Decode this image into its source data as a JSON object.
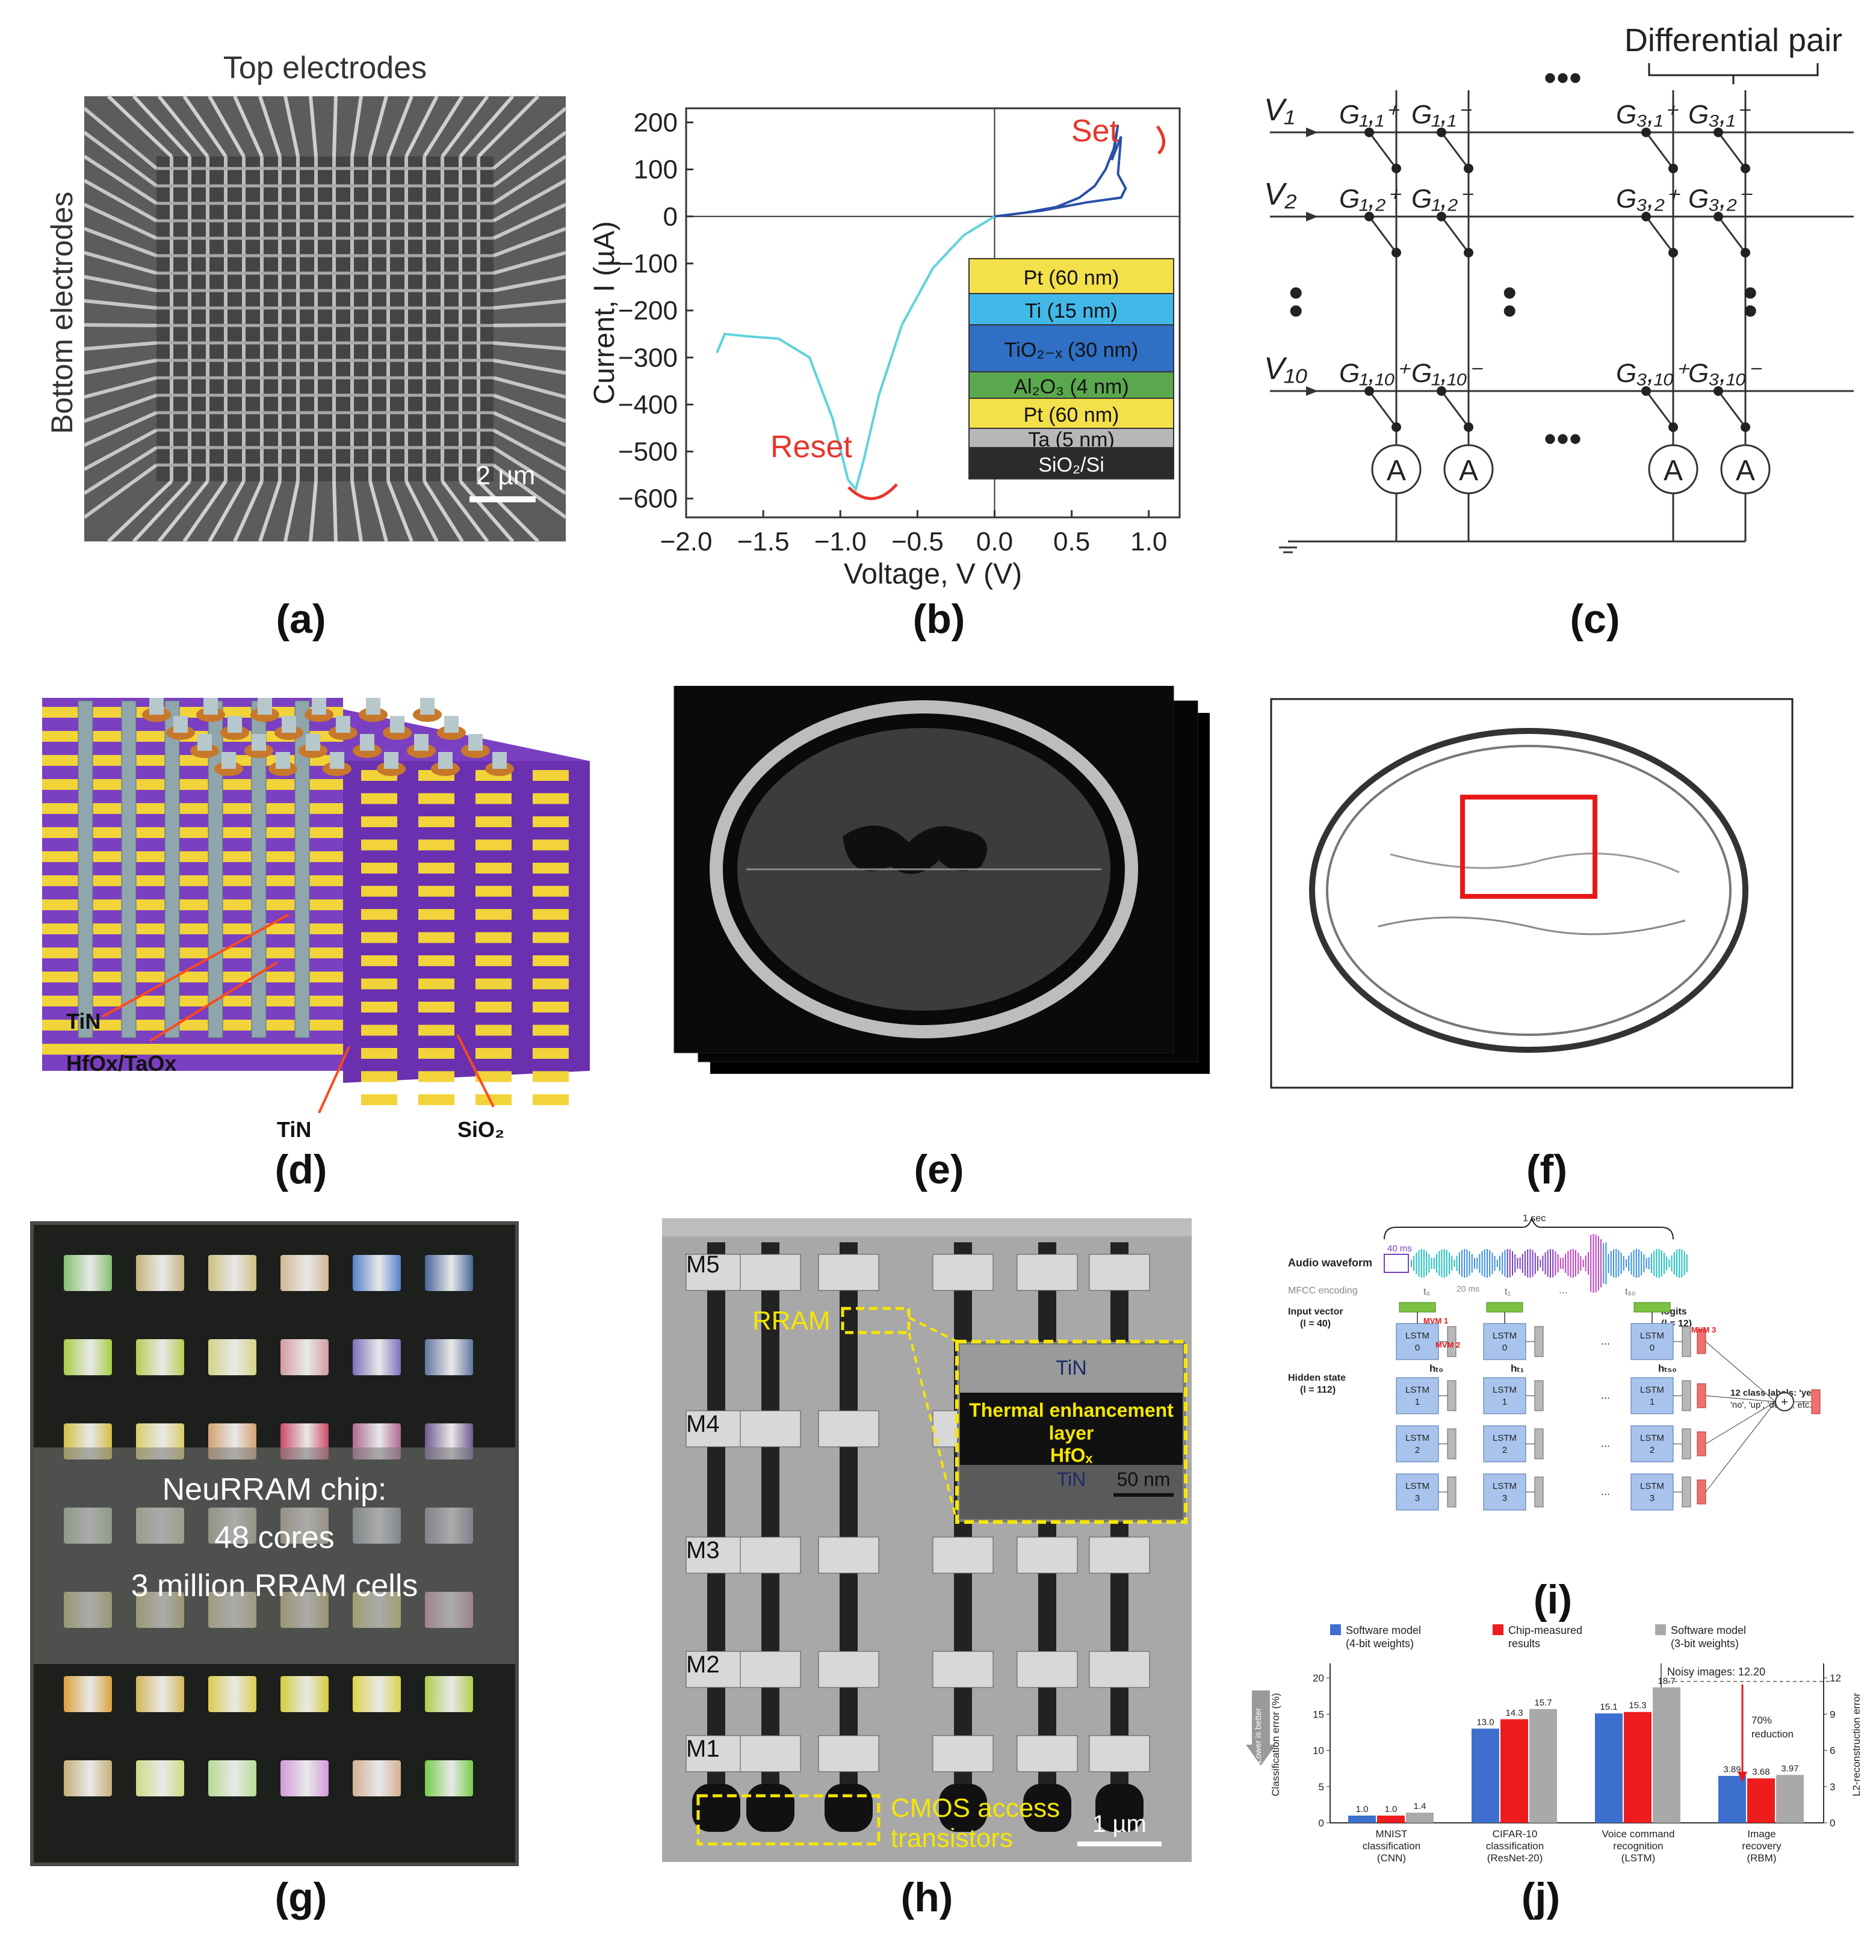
{
  "captions": [
    "(a)",
    "(b)",
    "(c)",
    "(d)",
    "(e)",
    "(f)",
    "(g)",
    "(h)",
    "(i)",
    "(j)"
  ],
  "panel_a": {
    "top_label": "Top electrodes",
    "side_label": "Bottom electrodes",
    "scale": "2 µm"
  },
  "panel_b": {
    "set_label": "Set",
    "reset_label": "Reset",
    "stack": [
      "Pt (60 nm)",
      "Ti (15 nm)",
      "TiO₂₋ₓ (30 nm)",
      "Al₂O₃ (4 nm)",
      "Pt (60 nm)",
      "Ta (5 nm)",
      "SiO₂/Si"
    ],
    "stack_colors": [
      "#f3e04a",
      "#41b8e8",
      "#2f6fc4",
      "#5aa84e",
      "#f3e04a",
      "#b7b7b7",
      "#2b2b2b"
    ],
    "chart_data": {
      "type": "line",
      "xlabel": "Voltage, V (V)",
      "ylabel": "Current, I (µA)",
      "xlim": [
        -2.0,
        1.2
      ],
      "ylim": [
        -640,
        230
      ],
      "xticks": [
        -2.0,
        -1.5,
        -1.0,
        -0.5,
        0.0,
        0.5,
        1.0
      ],
      "xtick_labels": [
        "−2.0",
        "−1.5",
        "−1.0",
        "−0.5",
        "0.0",
        "0.5",
        "1.0"
      ],
      "yticks": [
        200,
        100,
        0,
        -100,
        -200,
        -300,
        -400,
        -500,
        -600
      ],
      "ytick_labels": [
        "200",
        "100",
        "0",
        "−100",
        "−200",
        "−300",
        "−400",
        "−500",
        "−600"
      ],
      "series": [
        {
          "name": "Set",
          "color": "#2a4fa8",
          "x": [
            0.0,
            0.2,
            0.4,
            0.55,
            0.65,
            0.72,
            0.78,
            0.8,
            0.76,
            0.82,
            0.8,
            0.85,
            0.82,
            0.6,
            0.3,
            0.0
          ],
          "y": [
            0,
            8,
            20,
            40,
            65,
            100,
            150,
            195,
            120,
            170,
            90,
            60,
            40,
            30,
            12,
            0
          ]
        },
        {
          "name": "Reset",
          "color": "#5fd2dc",
          "x": [
            0.0,
            -0.2,
            -0.4,
            -0.6,
            -0.75,
            -0.85,
            -0.9,
            -0.95,
            -1.05,
            -1.2,
            -1.4,
            -1.6,
            -1.75,
            -1.8
          ],
          "y": [
            0,
            -40,
            -110,
            -230,
            -380,
            -520,
            -580,
            -560,
            -430,
            -300,
            -260,
            -255,
            -250,
            -290
          ]
        }
      ]
    }
  },
  "panel_c": {
    "title": "Differential pair",
    "rows": [
      "V₁",
      "V₂",
      "V₁₀"
    ],
    "ghead_pos": [
      "G₁,₁⁺",
      "G₁,₂⁺",
      "G₁,₁₀⁺"
    ],
    "ghead_neg": [
      "G₁,₁⁻",
      "G₁,₂⁻",
      "G₁,₁₀⁻"
    ],
    "g3_pos": [
      "G₃,₁⁺",
      "G₃,₂⁺",
      "G₃,₁₀⁺"
    ],
    "g3_neg": [
      "G₃,₁⁻",
      "G₃,₂⁻",
      "G₃,₁₀⁻"
    ],
    "ammeter": "A"
  },
  "panel_d": {
    "labels": [
      "TiN",
      "HfOx/TaOx",
      "TiN",
      "SiO₂"
    ]
  },
  "panel_g": {
    "overlay_lines": [
      "NeuRRAM chip:",
      "48 cores",
      "3 million RRAM cells"
    ]
  },
  "panel_h": {
    "layers": [
      "M5",
      "M4",
      "M3",
      "M2",
      "M1"
    ],
    "rram": "RRAM",
    "inset": [
      "TiN",
      "Thermal enhancement",
      "layer",
      "HfOₓ",
      "TiN",
      "50 nm"
    ],
    "cmos": [
      "CMOS access",
      "transistors"
    ],
    "scale": "1 µm"
  },
  "panel_i": {
    "audio": "Audio waveform",
    "one_sec": "1 sec",
    "ms40": "40 ms",
    "mfcc": "MFCC encoding",
    "ms20": "20 ms",
    "t_labels": [
      "t₀",
      "t₁",
      "t₅₀"
    ],
    "input_vector": "Input vector",
    "input_dim": "(l = 40)",
    "hidden_state": "Hidden state",
    "hidden_dim": "(l = 112)",
    "h_labels": [
      "hₜ₀",
      "hₜ₁",
      "hₜ₅₀"
    ],
    "mvm": [
      "MVM 1",
      "MVM 2",
      "MVM 3"
    ],
    "logits": "logits",
    "logits_dim": "(l = 12)",
    "class_labels": [
      "12 class labels: 'yes',",
      "'no', 'up', 'down', etc."
    ],
    "lstm_word": "LSTM",
    "lstm_index": [
      "0",
      "1",
      "2",
      "3"
    ],
    "dots": "...",
    "plus": "+"
  },
  "panel_j": {
    "legend": [
      {
        "label": [
          "Software model",
          "(4-bit weights)"
        ],
        "color": "#3d6fcf"
      },
      {
        "label": [
          "Chip-measured",
          "results"
        ],
        "color": "#ee1c1c"
      },
      {
        "label": [
          "Software model",
          "(3-bit weights)"
        ],
        "color": "#a9a9a9"
      }
    ],
    "lower_is_better": "Lower is better",
    "noisy_label": "Noisy images: 12.20",
    "reduction": [
      "70%",
      "reduction"
    ],
    "chart_data": {
      "type": "bar",
      "ylabel": "Classification error (%)",
      "y2label": "L2-reconstruction error",
      "ylim": [
        0,
        22
      ],
      "yticks": [
        0,
        5,
        10,
        15,
        20
      ],
      "y2lim": [
        0,
        13.2
      ],
      "y2ticks": [
        0,
        3,
        6,
        9,
        12
      ],
      "categories": [
        [
          "MNIST",
          "classification",
          "(CNN)"
        ],
        [
          "CIFAR-10",
          "classification",
          "(ResNet-20)"
        ],
        [
          "Voice command",
          "recognition",
          "(LSTM)"
        ],
        [
          "Image",
          "recovery",
          "(RBM)"
        ]
      ],
      "series": [
        {
          "name": "Software model (4-bit weights)",
          "values": [
            1.0,
            13.0,
            15.1,
            3.89
          ],
          "labels": [
            "1.0",
            "13.0",
            "15.1",
            "3.89"
          ]
        },
        {
          "name": "Chip-measured results",
          "values": [
            1.0,
            14.3,
            15.3,
            3.68
          ],
          "labels": [
            "1.0",
            "14.3",
            "15.3",
            "3.68"
          ]
        },
        {
          "name": "Software model (3-bit weights)",
          "values": [
            1.4,
            15.7,
            18.7,
            3.97
          ],
          "labels": [
            "1.4",
            "15.7",
            "18.7",
            "3.97"
          ]
        }
      ],
      "last_group_uses_right_axis": true
    }
  }
}
